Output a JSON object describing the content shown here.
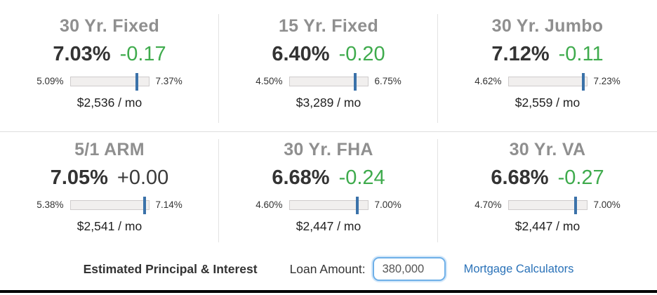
{
  "colors": {
    "title_gray": "#8f8f8f",
    "rate_dark": "#333333",
    "change_green": "#3fab4d",
    "marker_blue": "#3b72a9",
    "link_blue": "#2a72b8"
  },
  "cards": [
    {
      "name": "30 Yr. Fixed",
      "rate": "7.03%",
      "change": "-0.17",
      "min": "5.09%",
      "max": "7.37%",
      "payment": "$2,536 / mo"
    },
    {
      "name": "15 Yr. Fixed",
      "rate": "6.40%",
      "change": "-0.20",
      "min": "4.50%",
      "max": "6.75%",
      "payment": "$3,289 / mo"
    },
    {
      "name": "30 Yr. Jumbo",
      "rate": "7.12%",
      "change": "-0.11",
      "min": "4.62%",
      "max": "7.23%",
      "payment": "$2,559 / mo"
    },
    {
      "name": "5/1 ARM",
      "rate": "7.05%",
      "change": "+0.00",
      "min": "5.38%",
      "max": "7.14%",
      "payment": "$2,541 / mo"
    },
    {
      "name": "30 Yr. FHA",
      "rate": "6.68%",
      "change": "-0.24",
      "min": "4.60%",
      "max": "7.00%",
      "payment": "$2,447 / mo"
    },
    {
      "name": "30 Yr. VA",
      "rate": "6.68%",
      "change": "-0.27",
      "min": "4.70%",
      "max": "7.00%",
      "payment": "$2,447 / mo"
    }
  ],
  "footer": {
    "label": "Estimated Principal & Interest",
    "loan_amount_label": "Loan Amount:",
    "loan_amount_value": "380,000",
    "calculators_link": "Mortgage Calculators"
  }
}
